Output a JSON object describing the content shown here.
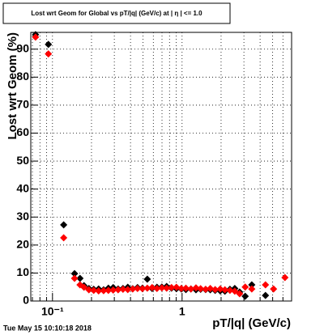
{
  "chart_data": {
    "type": "scatter",
    "title": "Lost wrt Geom for Global vs pT/|q| (GeV/c) at | η | <= 1.0",
    "x_label": "pT/|q| (GeV/c)",
    "y_label": "Lost wrt Geom (%)",
    "footer": "Tue May 15 10:10:18 2018",
    "x": [
      0.074,
      0.093,
      0.122,
      0.148,
      0.163,
      0.175,
      0.191,
      0.208,
      0.227,
      0.248,
      0.27,
      0.294,
      0.321,
      0.35,
      0.381,
      0.416,
      0.453,
      0.494,
      0.539,
      0.587,
      0.64,
      0.698,
      0.76,
      0.829,
      0.904,
      0.986,
      1.07,
      1.17,
      1.28,
      1.39,
      1.52,
      1.65,
      1.8,
      1.97,
      2.14,
      2.34,
      2.55,
      2.78,
      3.07,
      3.45,
      4.4,
      5.08,
      6.22
    ],
    "series": [
      {
        "color": "#000000",
        "values": [
          95.2,
          91.7,
          27.2,
          9.8,
          8.1,
          5.5,
          4.5,
          4.2,
          4.3,
          4.0,
          4.6,
          4.8,
          4.3,
          4.5,
          4.9,
          4.4,
          4.8,
          4.6,
          7.8,
          4.5,
          4.9,
          5.0,
          5.2,
          4.6,
          4.4,
          4.3,
          4.1,
          4.3,
          4.0,
          4.2,
          4.1,
          4.0,
          3.8,
          3.6,
          3.5,
          4.2,
          4.5,
          3.2,
          1.7,
          5.8,
          2.0,
          null,
          null
        ]
      },
      {
        "color": "#ff0000",
        "values": [
          94.3,
          88.3,
          22.6,
          8.1,
          5.8,
          4.9,
          4.0,
          3.8,
          3.6,
          3.7,
          3.8,
          3.9,
          4.0,
          4.2,
          4.1,
          4.3,
          4.5,
          4.4,
          4.6,
          4.8,
          4.5,
          4.7,
          4.6,
          4.8,
          4.9,
          4.5,
          4.6,
          4.3,
          4.7,
          4.4,
          4.2,
          4.5,
          4.1,
          4.3,
          4.0,
          3.8,
          3.5,
          2.6,
          5.0,
          4.3,
          5.8,
          4.3,
          8.4
        ]
      }
    ],
    "xlim": [
      0.068,
      7
    ],
    "log_x": true,
    "xticks": [
      {
        "value": 0.1,
        "label": "10⁻¹"
      },
      1
    ],
    "xminorticks": [
      0.07,
      0.08,
      0.09,
      0.2,
      0.3,
      0.4,
      0.5,
      0.6,
      0.7,
      0.8,
      0.9,
      2,
      3,
      4,
      5,
      6,
      7
    ],
    "ylim": [
      0,
      96
    ],
    "yticks": [
      0,
      10,
      20,
      30,
      40,
      50,
      60,
      70,
      80,
      90
    ],
    "grid": true
  }
}
